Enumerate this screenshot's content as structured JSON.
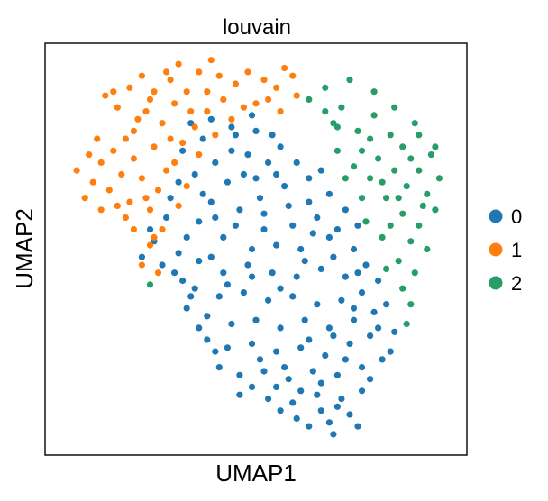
{
  "chart_data": {
    "type": "scatter",
    "title": "louvain",
    "xlabel": "UMAP1",
    "ylabel": "UMAP2",
    "xlim": [
      0,
      10
    ],
    "ylim": [
      0,
      10
    ],
    "grid": false,
    "ticks": false,
    "legend": {
      "placement": "right",
      "entries": [
        {
          "name": "0",
          "color": "#1f77b4"
        },
        {
          "name": "1",
          "color": "#ff7f0e"
        },
        {
          "name": "2",
          "color": "#279e68"
        }
      ]
    },
    "series": [
      {
        "name": "0",
        "color": "#1f77b4",
        "points": [
          [
            3.4,
            8.2
          ],
          [
            3.9,
            8.3
          ],
          [
            4.4,
            8.1
          ],
          [
            5.0,
            8.0
          ],
          [
            5.6,
            7.6
          ],
          [
            4.8,
            7.4
          ],
          [
            4.0,
            7.2
          ],
          [
            3.5,
            6.9
          ],
          [
            4.3,
            6.7
          ],
          [
            5.0,
            6.8
          ],
          [
            5.7,
            6.6
          ],
          [
            6.3,
            6.8
          ],
          [
            6.8,
            6.4
          ],
          [
            7.2,
            6.0
          ],
          [
            6.5,
            5.8
          ],
          [
            5.9,
            5.6
          ],
          [
            5.2,
            5.9
          ],
          [
            4.6,
            6.0
          ],
          [
            3.9,
            6.2
          ],
          [
            3.6,
            5.7
          ],
          [
            4.2,
            5.3
          ],
          [
            4.9,
            5.0
          ],
          [
            5.5,
            5.1
          ],
          [
            6.1,
            5.0
          ],
          [
            6.8,
            5.3
          ],
          [
            7.4,
            5.0
          ],
          [
            7.7,
            4.6
          ],
          [
            7.2,
            4.3
          ],
          [
            6.6,
            4.5
          ],
          [
            6.0,
            4.3
          ],
          [
            5.4,
            4.4
          ],
          [
            4.8,
            4.6
          ],
          [
            4.2,
            4.4
          ],
          [
            3.6,
            4.7
          ],
          [
            3.1,
            4.9
          ],
          [
            3.0,
            4.4
          ],
          [
            3.5,
            4.0
          ],
          [
            4.1,
            3.8
          ],
          [
            4.7,
            3.9
          ],
          [
            5.3,
            3.7
          ],
          [
            5.9,
            3.8
          ],
          [
            6.5,
            3.6
          ],
          [
            7.1,
            3.7
          ],
          [
            7.6,
            3.9
          ],
          [
            7.9,
            3.4
          ],
          [
            7.4,
            3.2
          ],
          [
            6.8,
            3.0
          ],
          [
            6.2,
            3.2
          ],
          [
            5.6,
            3.0
          ],
          [
            5.0,
            3.2
          ],
          [
            4.4,
            3.1
          ],
          [
            3.8,
            3.3
          ],
          [
            3.3,
            3.5
          ],
          [
            3.8,
            2.7
          ],
          [
            4.3,
            2.5
          ],
          [
            4.9,
            2.6
          ],
          [
            5.5,
            2.4
          ],
          [
            6.1,
            2.5
          ],
          [
            6.7,
            2.3
          ],
          [
            7.3,
            2.6
          ],
          [
            7.8,
            2.8
          ],
          [
            8.1,
            2.2
          ],
          [
            7.6,
            2.0
          ],
          [
            7.0,
            1.8
          ],
          [
            6.4,
            1.9
          ],
          [
            5.8,
            1.7
          ],
          [
            5.2,
            1.9
          ],
          [
            4.6,
            1.8
          ],
          [
            4.1,
            2.0
          ],
          [
            4.6,
            1.3
          ],
          [
            5.3,
            1.2
          ],
          [
            5.9,
            1.1
          ],
          [
            6.5,
            1.3
          ],
          [
            7.1,
            1.2
          ],
          [
            7.6,
            1.4
          ],
          [
            7.3,
            0.8
          ],
          [
            6.8,
            0.6
          ],
          [
            6.3,
            0.5
          ],
          [
            6.9,
            0.3
          ],
          [
            7.5,
            0.5
          ],
          [
            2.8,
            5.8
          ],
          [
            2.5,
            5.2
          ],
          [
            2.9,
            6.3
          ],
          [
            3.2,
            7.5
          ],
          [
            4.5,
            7.9
          ],
          [
            5.3,
            7.2
          ],
          [
            6.0,
            7.2
          ],
          [
            6.6,
            7.0
          ],
          [
            7.5,
            5.6
          ],
          [
            8.0,
            4.2
          ],
          [
            8.2,
            3.6
          ],
          [
            8.4,
            2.9
          ],
          [
            8.3,
            2.4
          ],
          [
            2.7,
            4.6
          ],
          [
            2.2,
            4.8
          ],
          [
            3.2,
            4.2
          ],
          [
            3.9,
            4.8
          ],
          [
            4.5,
            5.6
          ],
          [
            5.1,
            6.3
          ],
          [
            5.8,
            6.1
          ],
          [
            6.3,
            6.2
          ],
          [
            7.0,
            5.5
          ],
          [
            6.2,
            4.7
          ],
          [
            5.6,
            4.0
          ],
          [
            4.9,
            4.3
          ],
          [
            4.3,
            4.1
          ],
          [
            3.4,
            3.8
          ],
          [
            3.6,
            3.0
          ],
          [
            4.0,
            2.4
          ],
          [
            5.1,
            2.2
          ],
          [
            5.7,
            2.0
          ],
          [
            6.3,
            2.7
          ],
          [
            6.9,
            2.8
          ],
          [
            7.4,
            3.5
          ],
          [
            8.0,
            3.0
          ],
          [
            7.8,
            1.7
          ],
          [
            7.2,
            2.2
          ],
          [
            6.6,
            1.6
          ],
          [
            6.1,
            1.4
          ],
          [
            5.5,
            1.5
          ],
          [
            4.9,
            1.5
          ],
          [
            5.6,
            0.9
          ],
          [
            6.0,
            0.7
          ],
          [
            7.0,
            1.0
          ],
          [
            6.6,
            0.9
          ],
          [
            4.4,
            7.5
          ],
          [
            3.7,
            7.8
          ],
          [
            4.9,
            8.4
          ],
          [
            5.4,
            7.9
          ],
          [
            3.1,
            6.7
          ],
          [
            3.3,
            5.3
          ],
          [
            2.4,
            5.5
          ],
          [
            6.9,
            4.8
          ],
          [
            7.5,
            4.4
          ],
          [
            5.2,
            5.5
          ],
          [
            4.0,
            5.8
          ],
          [
            3.7,
            6.4
          ],
          [
            4.7,
            6.9
          ],
          [
            5.5,
            6.9
          ],
          [
            6.4,
            5.4
          ]
        ]
      },
      {
        "name": "1",
        "color": "#ff7f0e",
        "points": [
          [
            0.6,
            7.0
          ],
          [
            0.9,
            7.4
          ],
          [
            1.2,
            7.2
          ],
          [
            1.0,
            6.7
          ],
          [
            1.4,
            6.5
          ],
          [
            1.7,
            6.9
          ],
          [
            1.5,
            7.5
          ],
          [
            2.0,
            7.3
          ],
          [
            2.2,
            6.8
          ],
          [
            1.9,
            6.2
          ],
          [
            2.4,
            6.0
          ],
          [
            2.6,
            6.5
          ],
          [
            2.8,
            7.0
          ],
          [
            2.5,
            7.6
          ],
          [
            2.0,
            8.0
          ],
          [
            2.3,
            8.5
          ],
          [
            2.7,
            8.2
          ],
          [
            3.0,
            8.7
          ],
          [
            3.3,
            9.0
          ],
          [
            2.9,
            9.3
          ],
          [
            2.5,
            9.0
          ],
          [
            1.6,
            8.6
          ],
          [
            1.3,
            8.9
          ],
          [
            1.9,
            9.1
          ],
          [
            3.6,
            9.5
          ],
          [
            3.1,
            9.7
          ],
          [
            2.8,
            9.5
          ],
          [
            4.1,
            9.4
          ],
          [
            4.5,
            9.2
          ],
          [
            4.8,
            9.5
          ],
          [
            5.2,
            9.3
          ],
          [
            5.5,
            9.1
          ],
          [
            5.9,
            9.4
          ],
          [
            5.3,
            8.8
          ],
          [
            4.7,
            8.6
          ],
          [
            4.2,
            8.8
          ],
          [
            3.8,
            8.5
          ],
          [
            3.5,
            8.1
          ],
          [
            3.2,
            7.7
          ],
          [
            3.0,
            7.2
          ],
          [
            2.7,
            5.5
          ],
          [
            2.4,
            5.1
          ],
          [
            2.2,
            4.6
          ],
          [
            2.6,
            4.4
          ],
          [
            2.0,
            5.5
          ],
          [
            1.8,
            5.8
          ],
          [
            2.3,
            6.3
          ],
          [
            1.6,
            6.1
          ],
          [
            1.2,
            6.0
          ],
          [
            0.8,
            6.3
          ],
          [
            3.8,
            9.0
          ],
          [
            4.4,
            8.3
          ],
          [
            5.0,
            8.7
          ],
          [
            5.6,
            8.5
          ],
          [
            6.0,
            8.9
          ],
          [
            3.4,
            8.5
          ],
          [
            2.1,
            8.3
          ],
          [
            1.8,
            7.8
          ],
          [
            1.1,
            7.8
          ],
          [
            2.5,
            5.3
          ],
          [
            3.1,
            6.1
          ],
          [
            3.3,
            6.6
          ],
          [
            2.9,
            7.8
          ],
          [
            3.6,
            7.4
          ],
          [
            4.0,
            7.9
          ],
          [
            2.4,
            8.8
          ],
          [
            1.5,
            9.0
          ],
          [
            2.2,
            9.4
          ],
          [
            3.9,
            9.8
          ],
          [
            5.7,
            9.6
          ]
        ]
      },
      {
        "name": "2",
        "color": "#279e68",
        "points": [
          [
            6.3,
            8.8
          ],
          [
            6.7,
            9.1
          ],
          [
            7.1,
            8.6
          ],
          [
            6.9,
            8.2
          ],
          [
            7.5,
            8.0
          ],
          [
            7.9,
            8.4
          ],
          [
            8.3,
            7.9
          ],
          [
            8.6,
            7.6
          ],
          [
            9.0,
            7.9
          ],
          [
            9.3,
            7.4
          ],
          [
            9.0,
            7.0
          ],
          [
            8.7,
            6.6
          ],
          [
            9.2,
            6.4
          ],
          [
            9.5,
            6.8
          ],
          [
            9.4,
            6.0
          ],
          [
            9.0,
            5.6
          ],
          [
            8.6,
            5.9
          ],
          [
            8.2,
            6.3
          ],
          [
            7.8,
            6.8
          ],
          [
            7.4,
            7.1
          ],
          [
            7.0,
            7.5
          ],
          [
            8.0,
            7.3
          ],
          [
            8.4,
            7.0
          ],
          [
            8.8,
            5.2
          ],
          [
            9.2,
            5.0
          ],
          [
            8.5,
            4.7
          ],
          [
            8.1,
            5.3
          ],
          [
            7.7,
            5.7
          ],
          [
            8.9,
            4.4
          ],
          [
            8.6,
            4.0
          ],
          [
            8.8,
            3.6
          ],
          [
            8.7,
            3.1
          ],
          [
            7.9,
            9.0
          ],
          [
            8.4,
            8.6
          ],
          [
            7.3,
            9.3
          ],
          [
            6.7,
            8.5
          ],
          [
            7.6,
            7.5
          ],
          [
            8.9,
            8.2
          ],
          [
            9.1,
            6.1
          ],
          [
            8.3,
            5.6
          ],
          [
            2.4,
            4.1
          ],
          [
            7.0,
            8.1
          ],
          [
            7.8,
            7.8
          ],
          [
            8.1,
            6.7
          ],
          [
            8.5,
            6.3
          ],
          [
            9.4,
            7.6
          ],
          [
            8.2,
            4.5
          ],
          [
            7.6,
            6.3
          ],
          [
            7.2,
            6.8
          ],
          [
            8.8,
            7.3
          ]
        ]
      }
    ]
  }
}
